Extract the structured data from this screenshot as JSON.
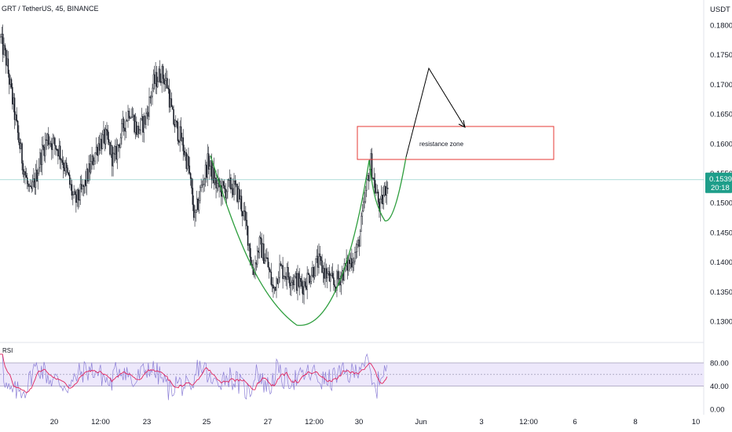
{
  "header": {
    "symbol_line": "GRT / TetherUS, 45, BINANCE",
    "currency": "USDT"
  },
  "colors": {
    "candle": "#131722",
    "cup_curve": "#2e9e3e",
    "zone_border": "#e53935",
    "arrow": "#000000",
    "price_line": "#26a69a",
    "price_badge": "#1e9e8a",
    "rsi_line": "#8c7fd6",
    "rsi_ma": "#e0245e",
    "rsi_band_fill": "#ede8fb",
    "rsi_band_border": "#a09bb8"
  },
  "annotations": {
    "zone_label": "resistance zone"
  },
  "current_price": {
    "value": "0.1539",
    "countdown": "20:18"
  },
  "rsi": {
    "label": "RSI",
    "levels": [
      "80.00",
      "40.00",
      "0.00"
    ]
  },
  "chart_data": {
    "type": "candlestick",
    "ylim": [
      0.128,
      0.182
    ],
    "y_ticks": [
      "0.1800",
      "0.1750",
      "0.1700",
      "0.1650",
      "0.1600",
      "0.1550",
      "0.1500",
      "0.1450",
      "0.1400",
      "0.1350",
      "0.1300"
    ],
    "x_ticks": [
      "20",
      "12:00",
      "23",
      "25",
      "27",
      "12:00",
      "30",
      "Jun",
      "3",
      "12:00",
      "6",
      "8",
      "10"
    ],
    "price_path": [
      [
        0,
        0.178
      ],
      [
        8,
        0.174
      ],
      [
        15,
        0.168
      ],
      [
        22,
        0.162
      ],
      [
        30,
        0.156
      ],
      [
        38,
        0.151
      ],
      [
        45,
        0.154
      ],
      [
        52,
        0.158
      ],
      [
        60,
        0.161
      ],
      [
        68,
        0.16
      ],
      [
        75,
        0.159
      ],
      [
        85,
        0.155
      ],
      [
        95,
        0.15
      ],
      [
        105,
        0.152
      ],
      [
        115,
        0.156
      ],
      [
        125,
        0.16
      ],
      [
        135,
        0.161
      ],
      [
        145,
        0.157
      ],
      [
        155,
        0.162
      ],
      [
        165,
        0.166
      ],
      [
        175,
        0.162
      ],
      [
        185,
        0.164
      ],
      [
        195,
        0.17
      ],
      [
        205,
        0.172
      ],
      [
        213,
        0.17
      ],
      [
        220,
        0.164
      ],
      [
        230,
        0.161
      ],
      [
        240,
        0.156
      ],
      [
        248,
        0.147
      ],
      [
        255,
        0.152
      ],
      [
        265,
        0.157
      ],
      [
        275,
        0.153
      ],
      [
        285,
        0.152
      ],
      [
        295,
        0.153
      ],
      [
        305,
        0.151
      ],
      [
        315,
        0.145
      ],
      [
        322,
        0.138
      ],
      [
        330,
        0.143
      ],
      [
        340,
        0.14
      ],
      [
        348,
        0.135
      ],
      [
        355,
        0.139
      ],
      [
        365,
        0.138
      ],
      [
        375,
        0.137
      ],
      [
        385,
        0.136
      ],
      [
        395,
        0.138
      ],
      [
        405,
        0.14
      ],
      [
        415,
        0.138
      ],
      [
        425,
        0.136
      ],
      [
        435,
        0.138
      ],
      [
        445,
        0.14
      ],
      [
        455,
        0.142
      ],
      [
        462,
        0.148
      ],
      [
        468,
        0.154
      ],
      [
        472,
        0.157
      ],
      [
        478,
        0.152
      ],
      [
        484,
        0.149
      ],
      [
        490,
        0.152
      ],
      [
        494,
        0.154
      ]
    ],
    "rsi_ylim": [
      0,
      100
    ],
    "rsi_bands": [
      40,
      80
    ]
  }
}
